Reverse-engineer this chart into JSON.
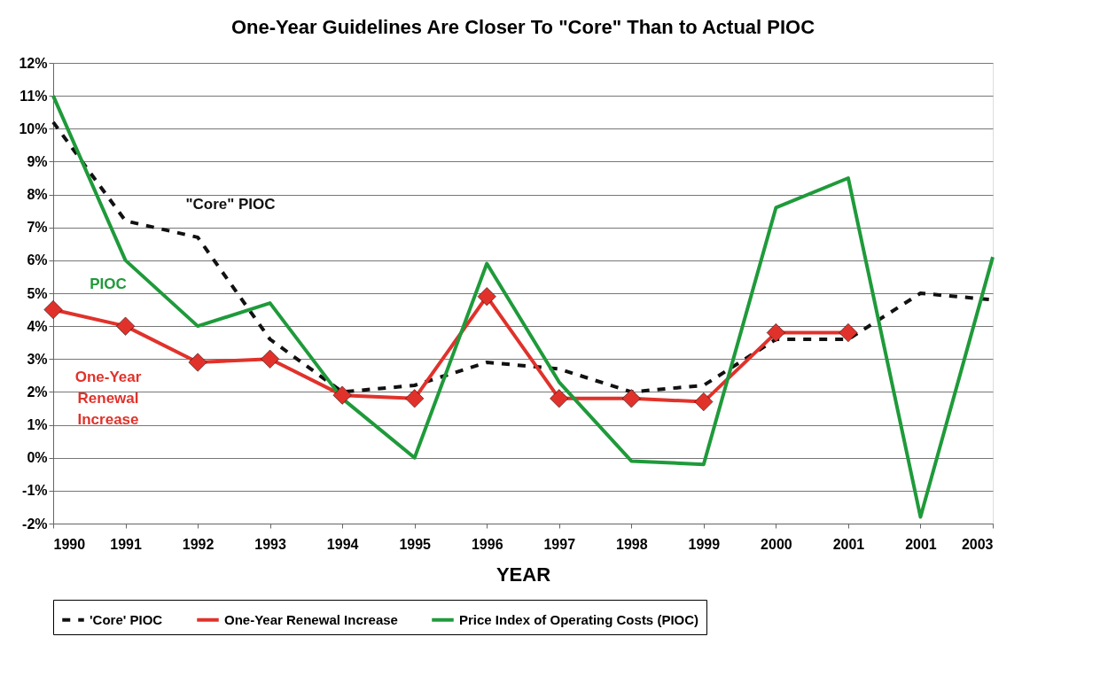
{
  "chart_data": {
    "type": "line",
    "title": "One-Year Guidelines Are Closer To \"Core\" Than to Actual PIOC",
    "xlabel": "YEAR",
    "categories": [
      "1990",
      "1991",
      "1992",
      "1993",
      "1994",
      "1995",
      "1996",
      "1997",
      "1998",
      "1999",
      "2000",
      "2001",
      "2001",
      "2003"
    ],
    "series": [
      {
        "name": "'Core' PIOC",
        "color": "#111111",
        "line_style": "dashed",
        "marker": "none",
        "values": [
          10.2,
          7.2,
          6.7,
          3.6,
          2.0,
          2.2,
          2.9,
          2.7,
          2.0,
          2.2,
          3.6,
          3.6,
          5.0,
          4.8
        ]
      },
      {
        "name": "One-Year Renewal Increase",
        "color": "#e0322b",
        "line_style": "solid",
        "marker": "diamond",
        "values": [
          4.5,
          4.0,
          2.9,
          3.0,
          1.9,
          1.8,
          4.9,
          1.8,
          1.8,
          1.7,
          3.8,
          3.8,
          null,
          null
        ]
      },
      {
        "name": "Price Index of Operating Costs (PIOC)",
        "color": "#1f9a3a",
        "line_style": "solid",
        "marker": "none",
        "values": [
          11.0,
          6.0,
          4.0,
          4.7,
          1.8,
          0.0,
          5.9,
          2.3,
          -0.1,
          -0.2,
          7.6,
          8.5,
          -1.8,
          6.1
        ]
      }
    ],
    "ylim": [
      -2,
      12
    ],
    "yticks": [
      {
        "value": -2,
        "label": "-2%"
      },
      {
        "value": -1,
        "label": "-1%"
      },
      {
        "value": 0,
        "label": "0%"
      },
      {
        "value": 1,
        "label": "1%"
      },
      {
        "value": 2,
        "label": "2%"
      },
      {
        "value": 3,
        "label": "3%"
      },
      {
        "value": 4,
        "label": "4%"
      },
      {
        "value": 5,
        "label": "5%"
      },
      {
        "value": 6,
        "label": "6%"
      },
      {
        "value": 7,
        "label": "7%"
      },
      {
        "value": 8,
        "label": "8%"
      },
      {
        "value": 9,
        "label": "9%"
      },
      {
        "value": 10,
        "label": "10%"
      },
      {
        "value": 11,
        "label": "11%"
      },
      {
        "value": 12,
        "label": "12%"
      }
    ],
    "grid": "y",
    "legend": "bottom",
    "annotations": [
      "\"Core\" PIOC",
      "PIOC",
      "One-Year\nRenewal\nIncrease"
    ]
  }
}
